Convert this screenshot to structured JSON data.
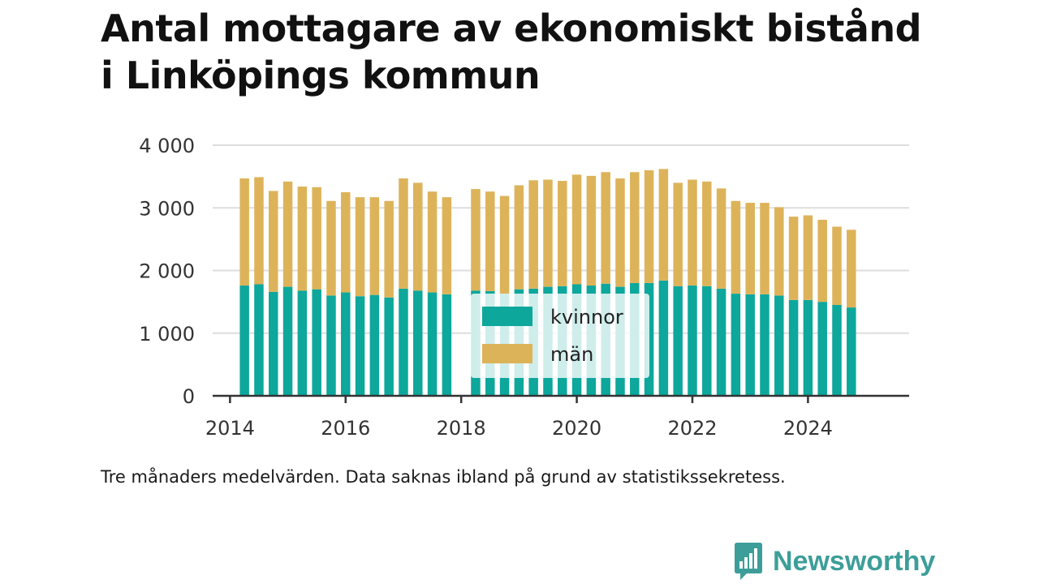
{
  "title": {
    "line1": "Antal mottagare av ekonomiskt bistånd",
    "line2": "i Linköpings kommun"
  },
  "caption": "Tre månaders medelvärden. Data saknas ibland på grund av statistikssekretess.",
  "brand": {
    "name": "Newsworthy",
    "icon": "newsworthy-logo-icon"
  },
  "colors": {
    "kvinnor": "#0da79c",
    "man": "#ddb35a",
    "grid": "#dddddd",
    "axis": "#333333",
    "brand": "#3d9e99"
  },
  "chart_data": {
    "type": "bar",
    "stacked": true,
    "x_unit": "year",
    "x": [
      2014.25,
      2014.5,
      2014.75,
      2015.0,
      2015.25,
      2015.5,
      2015.75,
      2016.0,
      2016.25,
      2016.5,
      2016.75,
      2017.0,
      2017.25,
      2017.5,
      2017.75,
      2018.25,
      2018.5,
      2018.75,
      2019.0,
      2019.25,
      2019.5,
      2019.75,
      2020.0,
      2020.25,
      2020.5,
      2020.75,
      2021.0,
      2021.25,
      2021.5,
      2021.75,
      2022.0,
      2022.25,
      2022.5,
      2022.75,
      2023.0,
      2023.25,
      2023.5,
      2023.75,
      2024.0,
      2024.25,
      2024.5,
      2024.75
    ],
    "series": [
      {
        "name": "kvinnor",
        "color": "#0da79c",
        "values": [
          1760,
          1780,
          1660,
          1740,
          1680,
          1700,
          1600,
          1650,
          1590,
          1610,
          1570,
          1710,
          1680,
          1650,
          1620,
          1680,
          1670,
          1630,
          1700,
          1710,
          1740,
          1750,
          1780,
          1760,
          1790,
          1740,
          1800,
          1800,
          1840,
          1750,
          1760,
          1750,
          1710,
          1630,
          1620,
          1620,
          1600,
          1530,
          1530,
          1500,
          1450,
          1410
        ]
      },
      {
        "name": "män",
        "color": "#ddb35a",
        "values": [
          1710,
          1710,
          1610,
          1680,
          1660,
          1630,
          1510,
          1600,
          1580,
          1560,
          1540,
          1760,
          1720,
          1610,
          1550,
          1620,
          1590,
          1560,
          1660,
          1730,
          1710,
          1680,
          1750,
          1750,
          1780,
          1730,
          1770,
          1800,
          1780,
          1650,
          1690,
          1670,
          1600,
          1480,
          1460,
          1460,
          1410,
          1330,
          1350,
          1310,
          1250,
          1240
        ]
      }
    ],
    "xlim": [
      2013.7,
      2025.75
    ],
    "ylim": [
      0,
      4000
    ],
    "yticks": [
      0,
      1000,
      2000,
      3000,
      4000
    ],
    "ytick_labels": [
      "0",
      "1 000",
      "2 000",
      "3 000",
      "4 000"
    ],
    "xticks": [
      2014,
      2016,
      2018,
      2020,
      2022,
      2024
    ],
    "xtick_labels": [
      "2014",
      "2016",
      "2018",
      "2020",
      "2022",
      "2024"
    ],
    "grid": true,
    "legend": {
      "placement": "inside-bottom-center",
      "entries": [
        "kvinnor",
        "män"
      ]
    }
  }
}
